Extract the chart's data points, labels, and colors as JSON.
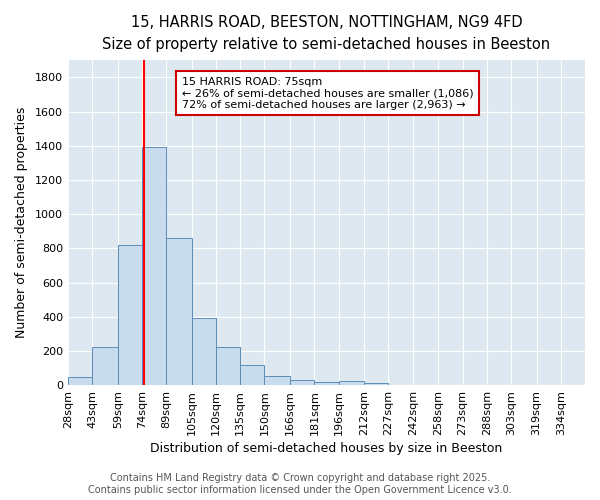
{
  "title_line1": "15, HARRIS ROAD, BEESTON, NOTTINGHAM, NG9 4FD",
  "title_line2": "Size of property relative to semi-detached houses in Beeston",
  "xlabel": "Distribution of semi-detached houses by size in Beeston",
  "ylabel": "Number of semi-detached properties",
  "bins": [
    28,
    43,
    59,
    74,
    89,
    105,
    120,
    135,
    150,
    166,
    181,
    196,
    212,
    227,
    242,
    258,
    273,
    288,
    303,
    319,
    334
  ],
  "values": [
    50,
    220,
    820,
    1390,
    860,
    395,
    220,
    115,
    55,
    30,
    20,
    25,
    10,
    0,
    0,
    0,
    0,
    0,
    0,
    0,
    0
  ],
  "bar_color": "#c9dced",
  "bar_edge_color": "#5b8db8",
  "red_line_x": 75,
  "ylim": [
    0,
    1900
  ],
  "yticks": [
    0,
    200,
    400,
    600,
    800,
    1000,
    1200,
    1400,
    1600,
    1800
  ],
  "annotation_title": "15 HARRIS ROAD: 75sqm",
  "annotation_line1": "← 26% of semi-detached houses are smaller (1,086)",
  "annotation_line2": "72% of semi-detached houses are larger (2,963) →",
  "annotation_box_facecolor": "#ffffff",
  "annotation_box_edgecolor": "#cc0000",
  "footer_line1": "Contains HM Land Registry data © Crown copyright and database right 2025.",
  "footer_line2": "Contains public sector information licensed under the Open Government Licence v3.0.",
  "fig_facecolor": "#ffffff",
  "plot_facecolor": "#dde8f0",
  "grid_color": "#ffffff",
  "title_fontsize": 10.5,
  "subtitle_fontsize": 9.5,
  "axis_label_fontsize": 9,
  "tick_fontsize": 8,
  "annotation_fontsize": 8,
  "footer_fontsize": 7
}
